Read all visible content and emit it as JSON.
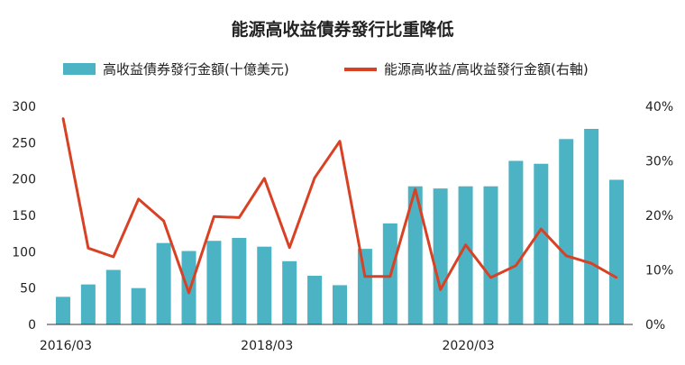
{
  "colors": {
    "bar": "#4bb3c3",
    "line": "#d94125",
    "axis": "#333333"
  },
  "chart_data": {
    "type": "bar+line",
    "title": "能源高收益債券發行比重降低",
    "legend": {
      "placement": "top"
    },
    "grid": false,
    "x_labels": [
      "2016/03",
      "2018/03",
      "2020/03"
    ],
    "x_label_indices": [
      0,
      8,
      16
    ],
    "n_points": 23,
    "left_axis": {
      "ticks": [
        "0",
        "50",
        "100",
        "150",
        "200",
        "250",
        "300"
      ],
      "range": [
        0,
        300
      ]
    },
    "right_axis": {
      "ticks": [
        "0%",
        "10%",
        "20%",
        "30%",
        "40%"
      ],
      "range": [
        0,
        40
      ]
    },
    "series": [
      {
        "name": "高收益債券發行金額(十億美元)",
        "type": "bar",
        "axis": "left",
        "values": [
          38,
          55,
          75,
          50,
          112,
          101,
          115,
          119,
          107,
          87,
          67,
          54,
          104,
          139,
          190,
          187,
          190,
          190,
          225,
          221,
          255,
          269,
          199
        ]
      },
      {
        "name": "能源高收益/高收益發行金額(右軸)",
        "type": "line",
        "axis": "right",
        "values": [
          37.8,
          14.0,
          12.4,
          23.0,
          19.0,
          5.8,
          19.8,
          19.6,
          26.8,
          14.1,
          26.9,
          33.6,
          8.8,
          8.8,
          24.8,
          6.4,
          14.6,
          8.6,
          10.8,
          17.5,
          12.6,
          11.2,
          8.6
        ]
      }
    ]
  }
}
